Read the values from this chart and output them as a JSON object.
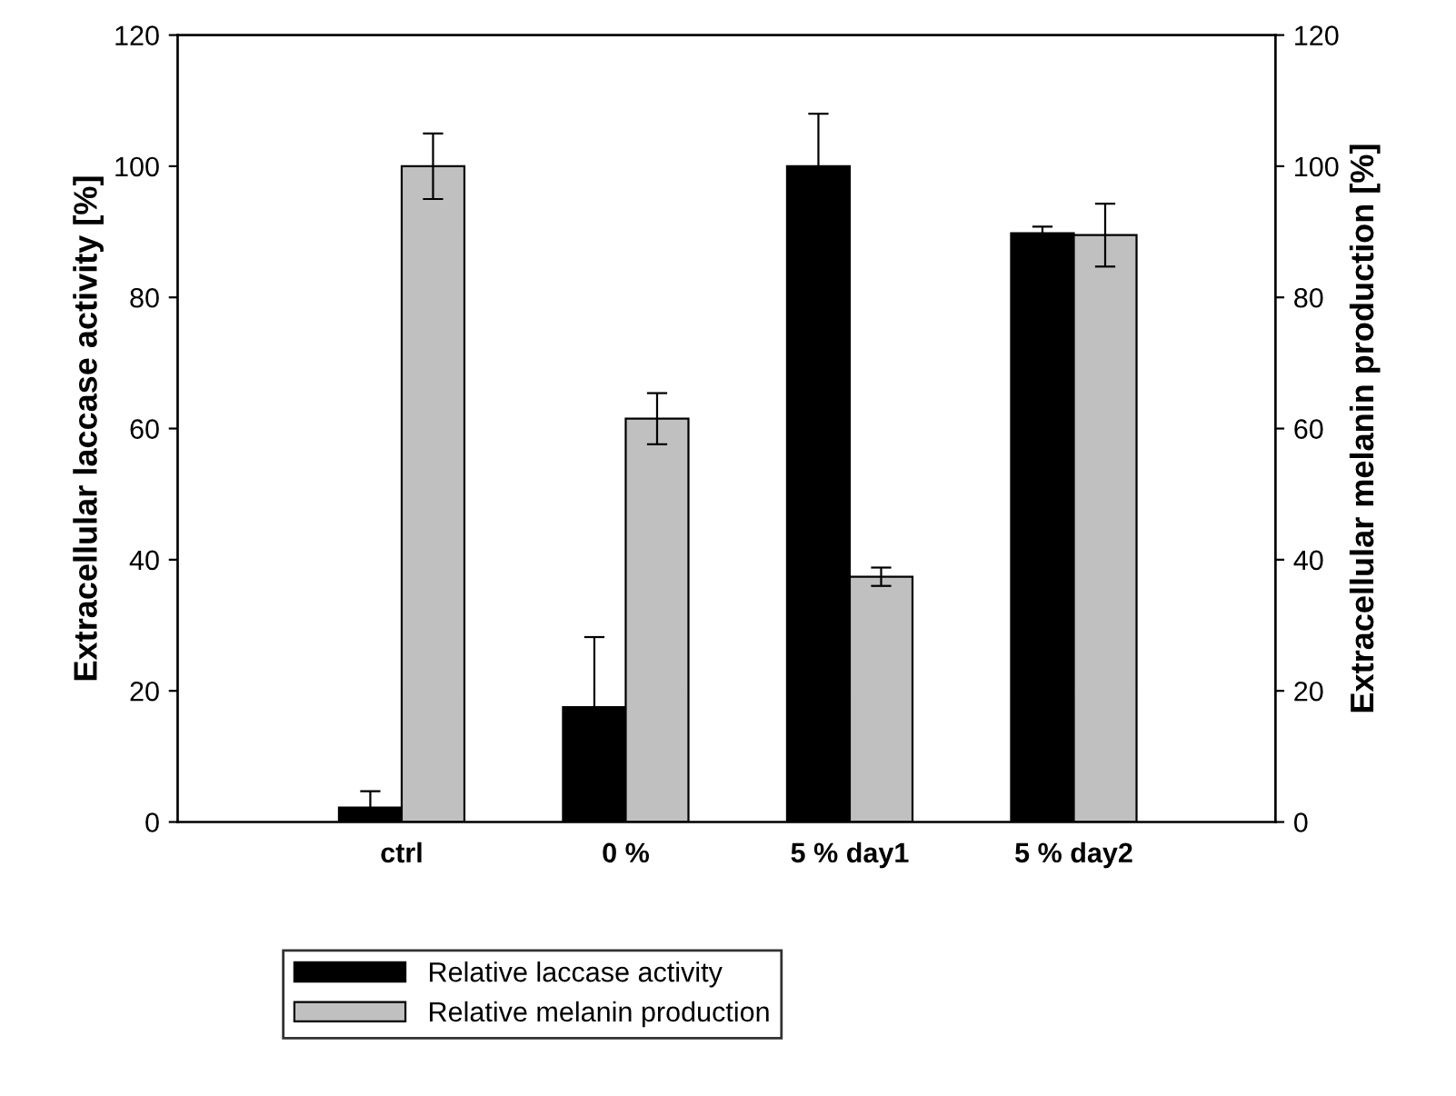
{
  "chart_data": {
    "type": "bar",
    "categories": [
      "ctrl",
      "0 %",
      "5 % day1",
      "5 % day2"
    ],
    "series": [
      {
        "name": "Relative laccase activity",
        "color": "#000000",
        "values": [
          2.2,
          17.5,
          100,
          89.8
        ],
        "errors": [
          2.5,
          10.7,
          8,
          1
        ]
      },
      {
        "name": "Relative melanin production",
        "color": "#c0c0c0",
        "values": [
          100,
          61.5,
          37.4,
          89.5
        ],
        "errors": [
          5,
          3.9,
          1.4,
          4.8
        ]
      }
    ],
    "ylabel": "Extracellular laccase activity [%]",
    "y2label": "Extracellular melanin production [%]",
    "ylim": [
      0,
      120
    ],
    "yticks": [
      0,
      20,
      40,
      60,
      80,
      100,
      120
    ],
    "y2lim": [
      0,
      120
    ],
    "y2ticks": [
      0,
      20,
      40,
      60,
      80,
      100,
      120
    ],
    "legend": "bottom left",
    "grid": false
  }
}
